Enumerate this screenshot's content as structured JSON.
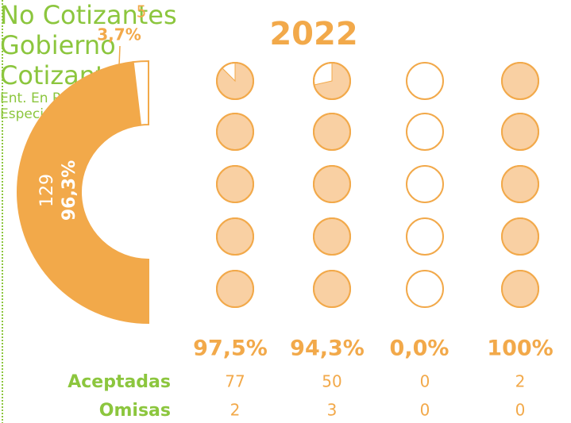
{
  "chart_data": [
    {
      "type": "half-donut",
      "values": [
        129,
        5
      ],
      "percent_labels": [
        "96,3%",
        "3,7%"
      ],
      "colors": [
        "#f2a94a",
        "#ffffff"
      ],
      "stroke": "#f2a94a"
    },
    {
      "type": "icon-columns",
      "title": "2022",
      "categories": [
        "No Cotizantes",
        "Gobierno",
        "Cotizantes",
        "Ent. En Procesos Especiales"
      ],
      "values": [
        97.5,
        94.3,
        0,
        100
      ],
      "value_labels": [
        "97,5%",
        "94,3%",
        "0,0%",
        "100%"
      ],
      "icon_color": "#f9d0a3",
      "color": "#f2a94a",
      "label_color": "#8cc63e",
      "rows": [
        {
          "name": "Aceptadas",
          "values": [
            77,
            50,
            0,
            2
          ]
        },
        {
          "name": "Omisas",
          "values": [
            2,
            3,
            0,
            0
          ]
        }
      ]
    }
  ]
}
